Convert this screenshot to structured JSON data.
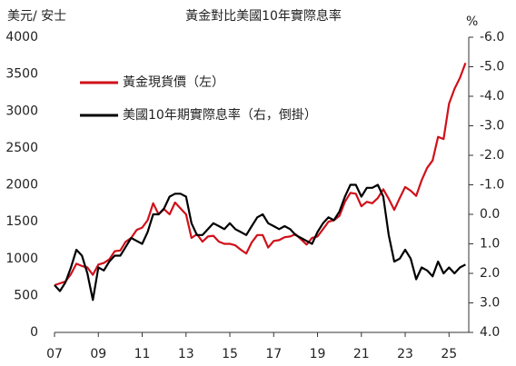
{
  "chart_data": {
    "type": "line",
    "title": "黃金對比美國10年實際息率",
    "y_label": "美元/ 安士",
    "y2_label": "%",
    "x": [
      2007,
      2007.25,
      2007.5,
      2007.75,
      2008,
      2008.25,
      2008.5,
      2008.75,
      2009,
      2009.25,
      2009.5,
      2009.75,
      2010,
      2010.25,
      2010.5,
      2010.75,
      2011,
      2011.25,
      2011.5,
      2011.75,
      2012,
      2012.25,
      2012.5,
      2012.75,
      2013,
      2013.25,
      2013.5,
      2013.75,
      2014,
      2014.25,
      2014.5,
      2014.75,
      2015,
      2015.25,
      2015.5,
      2015.75,
      2016,
      2016.25,
      2016.5,
      2016.75,
      2017,
      2017.25,
      2017.5,
      2017.75,
      2018,
      2018.25,
      2018.5,
      2018.75,
      2019,
      2019.25,
      2019.5,
      2019.75,
      2020,
      2020.25,
      2020.5,
      2020.75,
      2021,
      2021.25,
      2021.5,
      2021.75,
      2022,
      2022.25,
      2022.5,
      2022.75,
      2023,
      2023.25,
      2023.5,
      2023.75,
      2024,
      2024.25,
      2024.5,
      2024.75,
      2025,
      2025.25,
      2025.5,
      2025.75
    ],
    "series": [
      {
        "name": "黃金現貨價（左）",
        "color": "#d0101a",
        "axis": "y",
        "values": [
          640,
          665,
          690,
          790,
          930,
          900,
          880,
          780,
          920,
          940,
          990,
          1100,
          1110,
          1230,
          1280,
          1390,
          1420,
          1520,
          1750,
          1600,
          1670,
          1600,
          1760,
          1680,
          1600,
          1280,
          1330,
          1230,
          1300,
          1310,
          1230,
          1200,
          1200,
          1180,
          1120,
          1070,
          1220,
          1320,
          1320,
          1150,
          1240,
          1250,
          1290,
          1300,
          1330,
          1260,
          1190,
          1280,
          1300,
          1400,
          1500,
          1520,
          1580,
          1770,
          1890,
          1880,
          1710,
          1770,
          1750,
          1820,
          1940,
          1810,
          1660,
          1820,
          1970,
          1920,
          1850,
          2060,
          2230,
          2330,
          2650,
          2620,
          3100,
          3300,
          3450,
          3650
        ]
      },
      {
        "name": "美國10年期實際息率（右，倒掛）",
        "color": "#000000",
        "axis": "y2",
        "values": [
          2.4,
          2.6,
          2.3,
          1.8,
          1.2,
          1.4,
          2.0,
          2.9,
          1.8,
          1.9,
          1.6,
          1.4,
          1.4,
          1.1,
          0.8,
          0.9,
          1.0,
          0.6,
          0.0,
          0.0,
          -0.2,
          -0.6,
          -0.7,
          -0.7,
          -0.6,
          0.3,
          0.7,
          0.7,
          0.5,
          0.3,
          0.4,
          0.5,
          0.3,
          0.5,
          0.6,
          0.7,
          0.4,
          0.1,
          0.0,
          0.3,
          0.4,
          0.5,
          0.4,
          0.5,
          0.7,
          0.8,
          0.9,
          1.0,
          0.6,
          0.3,
          0.1,
          0.2,
          -0.1,
          -0.6,
          -1.0,
          -1.0,
          -0.6,
          -0.9,
          -0.9,
          -1.0,
          -0.6,
          0.7,
          1.6,
          1.5,
          1.2,
          1.5,
          2.2,
          1.8,
          1.9,
          2.1,
          1.6,
          2.0,
          1.8,
          2.0,
          1.8,
          1.7
        ]
      }
    ],
    "xlim": [
      2007,
      2025.9
    ],
    "xticks": [
      {
        "value": 2007,
        "label": "07"
      },
      {
        "value": 2009,
        "label": "09"
      },
      {
        "value": 2011,
        "label": "11"
      },
      {
        "value": 2013,
        "label": "13"
      },
      {
        "value": 2015,
        "label": "15"
      },
      {
        "value": 2017,
        "label": "17"
      },
      {
        "value": 2019,
        "label": "19"
      },
      {
        "value": 2021,
        "label": "21"
      },
      {
        "value": 2023,
        "label": "23"
      },
      {
        "value": 2025,
        "label": "25"
      }
    ],
    "ylim": [
      0,
      4000
    ],
    "yticks": [
      0,
      500,
      1000,
      1500,
      2000,
      2500,
      3000,
      3500,
      4000
    ],
    "y2lim": [
      -6,
      4
    ],
    "y2_inverted": true,
    "y2ticks": [
      {
        "value": -6,
        "label": "-6.0"
      },
      {
        "value": -5,
        "label": "-5.0"
      },
      {
        "value": -4,
        "label": "-4.0"
      },
      {
        "value": -3,
        "label": "-3.0"
      },
      {
        "value": -2,
        "label": "-2.0"
      },
      {
        "value": -1,
        "label": "-1.0"
      },
      {
        "value": 0,
        "label": "0.0"
      },
      {
        "value": 1,
        "label": "1.0"
      },
      {
        "value": 2,
        "label": "2.0"
      },
      {
        "value": 3,
        "label": "3.0"
      },
      {
        "value": 4,
        "label": "4.0"
      }
    ],
    "legend": "top-left"
  }
}
